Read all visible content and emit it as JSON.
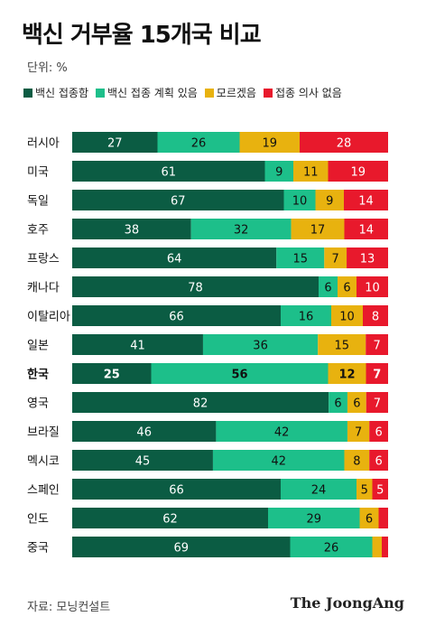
{
  "title": "백신 거부율 15개국 비교",
  "unit_label": "단위: %",
  "source": "자료: 모닝컨설트",
  "brand": "The JoongAng",
  "colors": {
    "highlight_row": "한국"
  },
  "chart_data": {
    "type": "bar",
    "stacked": true,
    "orientation": "horizontal",
    "categories": [
      "러시아",
      "미국",
      "독일",
      "호주",
      "프랑스",
      "캐나다",
      "이탈리아",
      "일본",
      "한국",
      "영국",
      "브라질",
      "멕시코",
      "스페인",
      "인도",
      "중국"
    ],
    "series": [
      {
        "name": "백신 접종함",
        "color": "#0b5c43",
        "label_color": "#ffffff",
        "values": [
          27,
          61,
          67,
          38,
          64,
          78,
          66,
          41,
          25,
          82,
          46,
          45,
          66,
          62,
          69
        ],
        "labels": [
          "27",
          "61",
          "67",
          "38",
          "64",
          "78",
          "66",
          "41",
          "25",
          "82",
          "46",
          "45",
          "66",
          "62",
          "69"
        ]
      },
      {
        "name": "백신 접종 계획 있음",
        "color": "#1dbf8a",
        "label_color": "#111111",
        "values": [
          26,
          9,
          10,
          32,
          15,
          6,
          16,
          36,
          56,
          6,
          42,
          42,
          24,
          29,
          26
        ],
        "labels": [
          "26",
          "9",
          "10",
          "32",
          "15",
          "6",
          "16",
          "36",
          "56",
          "6",
          "42",
          "42",
          "24",
          "29",
          "26"
        ]
      },
      {
        "name": "모르겠음",
        "color": "#e8b20f",
        "label_color": "#111111",
        "values": [
          19,
          11,
          9,
          17,
          7,
          6,
          10,
          15,
          12,
          6,
          7,
          8,
          5,
          6,
          3
        ],
        "labels": [
          "19",
          "11",
          "9",
          "17",
          "7",
          "6",
          "10",
          "15",
          "12",
          "6",
          "7",
          "8",
          "5",
          "6",
          ""
        ]
      },
      {
        "name": "접종 의사 없음",
        "color": "#e8192c",
        "label_color": "#ffffff",
        "values": [
          28,
          19,
          14,
          14,
          13,
          10,
          8,
          7,
          7,
          7,
          6,
          6,
          5,
          3,
          2
        ],
        "labels": [
          "28",
          "19",
          "14",
          "14",
          "13",
          "10",
          "8",
          "7",
          "7",
          "7",
          "6",
          "6",
          "5",
          "",
          ""
        ]
      }
    ]
  }
}
